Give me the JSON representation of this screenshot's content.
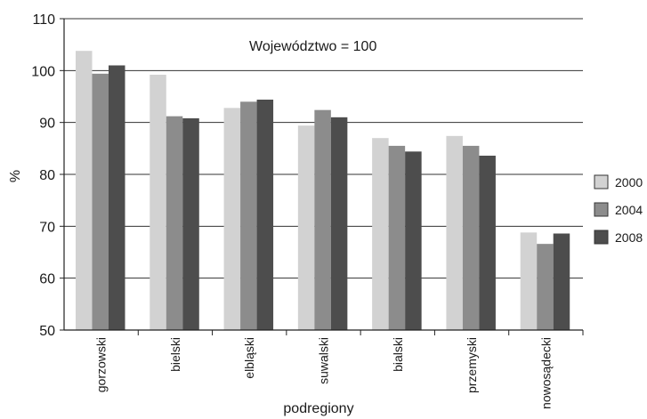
{
  "chart_data": {
    "type": "bar",
    "annotation": "Województwo = 100",
    "xlabel": "podregiony",
    "ylabel": "%",
    "ylim": [
      50,
      110
    ],
    "yticks": [
      50,
      60,
      70,
      80,
      90,
      100,
      110
    ],
    "grid": true,
    "legend_position": "right",
    "categories": [
      "gorzowski",
      "bielski",
      "elbląski",
      "suwalski",
      "bialski",
      "przemyski",
      "nowosądecki"
    ],
    "series": [
      {
        "name": "2000",
        "color": "#d2d2d2",
        "values": [
          103.8,
          99.2,
          92.8,
          89.4,
          87.0,
          87.4,
          68.8
        ]
      },
      {
        "name": "2004",
        "color": "#8c8c8c",
        "values": [
          99.4,
          91.2,
          94.0,
          92.4,
          85.5,
          85.5,
          66.6
        ]
      },
      {
        "name": "2008",
        "color": "#4d4d4d",
        "values": [
          101.0,
          90.8,
          94.4,
          91.0,
          84.4,
          83.6,
          68.6
        ]
      }
    ]
  }
}
